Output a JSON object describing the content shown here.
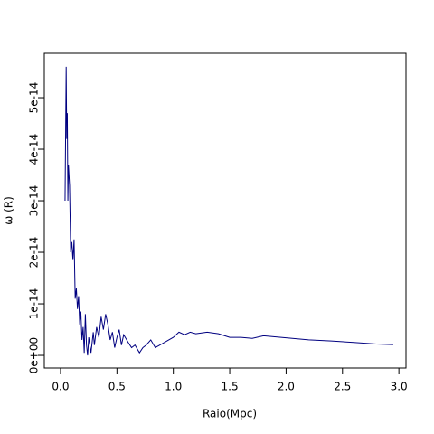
{
  "chart_data": {
    "type": "line",
    "x_label": "Raio(Mpc)",
    "y_label": "ω (R)",
    "x": [
      0.04,
      0.05,
      0.055,
      0.06,
      0.065,
      0.07,
      0.08,
      0.09,
      0.1,
      0.11,
      0.12,
      0.13,
      0.14,
      0.15,
      0.16,
      0.17,
      0.18,
      0.19,
      0.2,
      0.21,
      0.22,
      0.23,
      0.24,
      0.25,
      0.27,
      0.29,
      0.3,
      0.32,
      0.34,
      0.36,
      0.38,
      0.4,
      0.42,
      0.44,
      0.46,
      0.48,
      0.5,
      0.52,
      0.54,
      0.56,
      0.6,
      0.63,
      0.66,
      0.7,
      0.73,
      0.76,
      0.8,
      0.84,
      0.88,
      0.92,
      0.96,
      1.0,
      1.05,
      1.1,
      1.15,
      1.2,
      1.3,
      1.4,
      1.5,
      1.6,
      1.7,
      1.8,
      1.9,
      2.0,
      2.2,
      2.4,
      2.6,
      2.8,
      2.95
    ],
    "series": [
      {
        "color": "#000080",
        "values": [
          3e-14,
          5.6e-14,
          4.2e-14,
          4.7e-14,
          3e-14,
          3.7e-14,
          3.3e-14,
          2e-14,
          2.2e-14,
          1.85e-14,
          2.25e-14,
          1.1e-14,
          1.3e-14,
          9e-15,
          1.15e-14,
          6e-15,
          8.5e-15,
          3e-15,
          5.5e-15,
          5e-16,
          8e-15,
          2e-15,
          0.0,
          3.5e-15,
          5e-16,
          4.5e-15,
          2e-15,
          5.5e-15,
          3.5e-15,
          7.5e-15,
          5e-15,
          8e-15,
          6e-15,
          3e-15,
          4.5e-15,
          1.5e-15,
          3.5e-15,
          5e-15,
          2e-15,
          4e-15,
          2.5e-15,
          1.5e-15,
          2e-15,
          5e-16,
          1.5e-15,
          2e-15,
          3e-15,
          1.5e-15,
          2e-15,
          2.5e-15,
          3e-15,
          3.5e-15,
          4.5e-15,
          4e-15,
          4.5e-15,
          4.2e-15,
          4.5e-15,
          4.2e-15,
          3.5e-15,
          3.5e-15,
          3.3e-15,
          3.8e-15,
          3.6e-15,
          3.4e-15,
          3e-15,
          2.8e-15,
          2.5e-15,
          2.2e-15,
          2.1e-15
        ]
      }
    ],
    "xlim": [
      -0.144,
      3.063
    ],
    "ylim": [
      -2.45e-15,
      5.86e-14
    ],
    "xticks": [
      {
        "value": 0,
        "label": "0.0"
      },
      {
        "value": 0.5,
        "label": "0.5"
      },
      {
        "value": 1,
        "label": "1.0"
      },
      {
        "value": 1.5,
        "label": "1.5"
      },
      {
        "value": 2,
        "label": "2.0"
      },
      {
        "value": 2.5,
        "label": "2.5"
      },
      {
        "value": 3,
        "label": "3.0"
      }
    ],
    "yticks": [
      {
        "value": 0,
        "label": "0e+00"
      },
      {
        "value": 1e-14,
        "label": "1e-14"
      },
      {
        "value": 2e-14,
        "label": "2e-14"
      },
      {
        "value": 3e-14,
        "label": "3e-14"
      },
      {
        "value": 4e-14,
        "label": "4e-14"
      },
      {
        "value": 5e-14,
        "label": "5e-14"
      }
    ]
  }
}
